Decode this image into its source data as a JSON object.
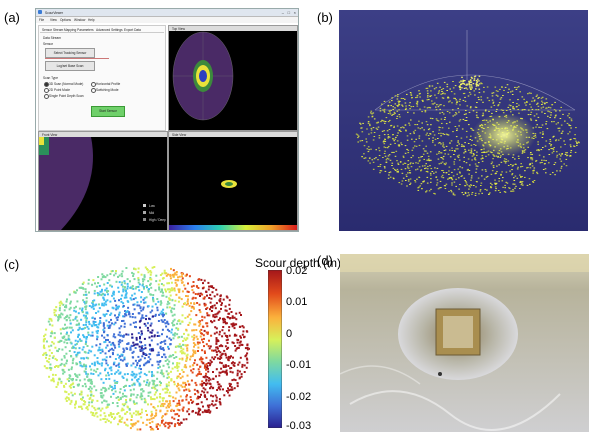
{
  "panels": {
    "a": "(a)",
    "b": "(b)",
    "c": "(c)",
    "d": "(d)"
  },
  "app": {
    "title": "ScourViewer",
    "menu": [
      "File",
      "View",
      "Options",
      "Window",
      "Help"
    ],
    "tabs": [
      "Sensor Stream",
      "Mapping Parameters",
      "Advanced Settings",
      "Export Data"
    ],
    "section_title": "Data Stream",
    "sub_title": "Sensor",
    "select_button": "Select Tracking Sensor",
    "log_button": "Log/set Base Scan",
    "scan_type_title": "Scan Type",
    "options": [
      "3D Scan (Normal Mode)",
      "Horizontal Profile",
      "2D Point Mode",
      "Switching Mode",
      "Single Point Depth Scan"
    ],
    "start_button": "Start Sensor",
    "view_titles": [
      "Top View",
      "Front View",
      "Side View"
    ],
    "legend": [
      "Low",
      "Mid",
      "High / Deep"
    ]
  },
  "colorbar": {
    "title": "Scour depth (m)",
    "ticks": [
      "0.02",
      "0.01",
      "0",
      "-0.01",
      "-0.02",
      "-0.03"
    ],
    "range": [
      -0.03,
      0.02
    ],
    "colors": [
      "#2a1f8f",
      "#3f6fd6",
      "#42bdf0",
      "#7ed9a0",
      "#d7f05a",
      "#fbb13c",
      "#e24a1b",
      "#a4161a"
    ]
  }
}
